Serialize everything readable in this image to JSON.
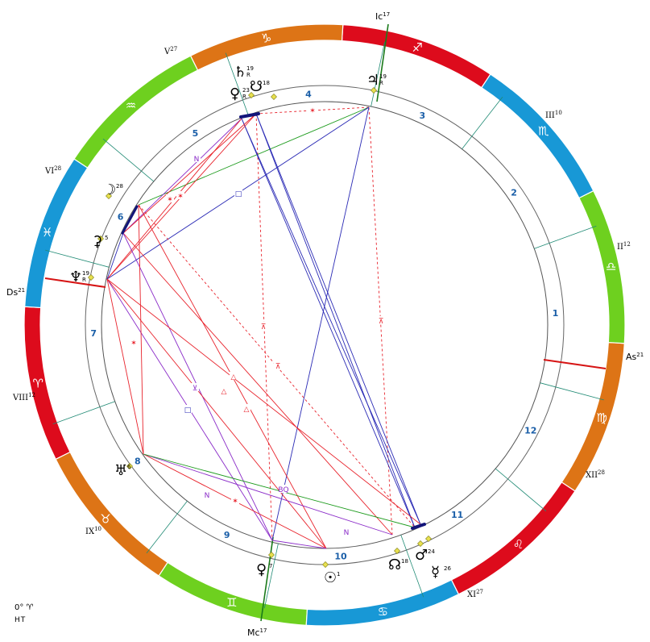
{
  "colors": {
    "fire": "#dd0b1c",
    "earth": "#dd7416",
    "air": "#6ed01f",
    "water": "#1898d6",
    "axis": "#d61414",
    "mcic": "#1a7a1a",
    "house_line": "#1f8a74",
    "house_num": "#1b5fa8",
    "red": "#e8232c",
    "blue": "#2a2ab5",
    "green": "#1a9a1a",
    "purple": "#8a2bc8",
    "bead": "#12157a"
  },
  "zodiac": [
    {
      "sign": "aries",
      "glyph": "♈",
      "element": "fire"
    },
    {
      "sign": "taurus",
      "glyph": "♉",
      "element": "earth"
    },
    {
      "sign": "gemini",
      "glyph": "♊",
      "element": "air"
    },
    {
      "sign": "cancer",
      "glyph": "♋",
      "element": "water"
    },
    {
      "sign": "leo",
      "glyph": "♌",
      "element": "fire"
    },
    {
      "sign": "virgo",
      "glyph": "♍",
      "element": "earth"
    },
    {
      "sign": "libra",
      "glyph": "♎",
      "element": "air"
    },
    {
      "sign": "scorpio",
      "glyph": "♏",
      "element": "water"
    },
    {
      "sign": "sagittarius",
      "glyph": "♐",
      "element": "fire"
    },
    {
      "sign": "capricorn",
      "glyph": "♑",
      "element": "earth"
    },
    {
      "sign": "aquarius",
      "glyph": "♒",
      "element": "air"
    },
    {
      "sign": "pisces",
      "glyph": "♓",
      "element": "water"
    }
  ],
  "angles": [
    {
      "name": "As",
      "deg": "21"
    },
    {
      "name": "Ic",
      "deg": "17"
    },
    {
      "name": "Ds",
      "deg": "21"
    },
    {
      "name": "Mc",
      "deg": "17"
    }
  ],
  "cusps": [
    {
      "label": "II",
      "deg": "12"
    },
    {
      "label": "III",
      "deg": "10"
    },
    {
      "label": "V",
      "deg": "27"
    },
    {
      "label": "VI",
      "deg": "28"
    },
    {
      "label": "VIII",
      "deg": "12"
    },
    {
      "label": "IX",
      "deg": "10"
    },
    {
      "label": "XI",
      "deg": "27"
    },
    {
      "label": "XII",
      "deg": "28"
    }
  ],
  "house_numbers": [
    "1",
    "2",
    "3",
    "4",
    "5",
    "6",
    "7",
    "8",
    "9",
    "10",
    "11",
    "12"
  ],
  "planets": [
    {
      "name": "jupiter",
      "glyph": "♃",
      "deg": "19",
      "r": "R"
    },
    {
      "name": "saturn",
      "glyph": "♄",
      "deg": "19",
      "r": "R"
    },
    {
      "name": "venus",
      "glyph": "♀",
      "deg": "23",
      "r": "R"
    },
    {
      "name": "south-node",
      "glyph": "☋",
      "deg": "18",
      "r": ""
    },
    {
      "name": "moon",
      "glyph": "☽",
      "deg": "28",
      "r": ""
    },
    {
      "name": "ceres",
      "glyph": "⚳",
      "deg": "5",
      "r": ""
    },
    {
      "name": "neptune",
      "glyph": "♆",
      "deg": "19",
      "r": "R"
    },
    {
      "name": "uranus",
      "glyph": "♅",
      "deg": "6",
      "r": ""
    },
    {
      "name": "proserpina",
      "glyph": "♀",
      "deg": "7",
      "r": ""
    },
    {
      "name": "sun",
      "glyph": "☉",
      "deg": "1",
      "r": ""
    },
    {
      "name": "north-node",
      "glyph": "☊",
      "deg": "18",
      "r": ""
    },
    {
      "name": "mars",
      "glyph": "♂",
      "deg": "24",
      "r": ""
    },
    {
      "name": "mercury",
      "glyph": "☿",
      "deg": "26",
      "r": ""
    }
  ],
  "aspect_symbols": {
    "trine": "△",
    "square": "□",
    "sextile": "✶",
    "quincunx": "⊼",
    "semisextile": "⊻",
    "novile": "N",
    "biquintile": "BQ"
  },
  "footer": {
    "line1": "0° ♈",
    "line2": "HT"
  }
}
